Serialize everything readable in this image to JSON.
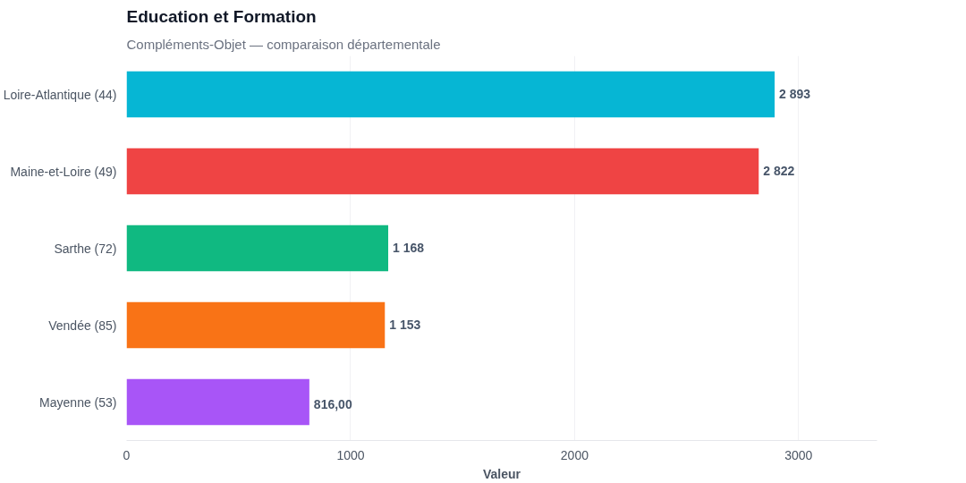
{
  "chart_data": {
    "type": "bar",
    "orientation": "horizontal",
    "title": "Education et Formation",
    "subtitle": "Compléments-Objet — comparaison départementale",
    "xlabel": "Valeur",
    "categories": [
      "Loire-Atlantique (44)",
      "Maine-et-Loire (49)",
      "Sarthe (72)",
      "Vendée (85)",
      "Mayenne (53)"
    ],
    "values": [
      2893,
      2822,
      1168,
      1153,
      816
    ],
    "colors": [
      "#06b6d4",
      "#ef4444",
      "#10b981",
      "#f97316",
      "#a855f7"
    ],
    "value_labels": [
      "2 893",
      "2 822",
      "1 168",
      "1 153",
      "816,00"
    ],
    "xlim": [
      0,
      3350
    ],
    "xticks": [
      0,
      1000,
      2000,
      3000
    ],
    "grid": "x"
  }
}
